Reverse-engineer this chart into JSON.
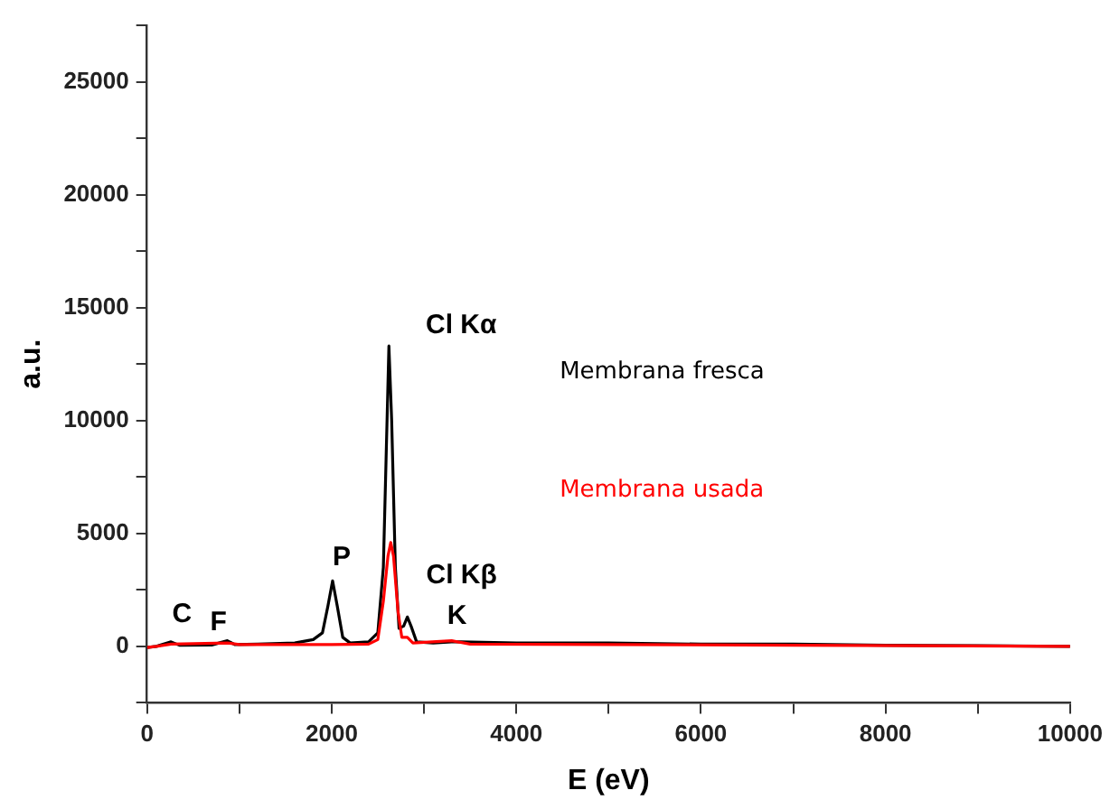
{
  "chart_data": {
    "type": "line",
    "xlabel": "E (eV)",
    "ylabel": "a.u.",
    "xlim": [
      0,
      10000
    ],
    "ylim": [
      -2500,
      27500
    ],
    "xticks": [
      0,
      {
        "value": 1000,
        "label": null
      },
      2000,
      {
        "value": 3000,
        "label": null
      },
      4000,
      {
        "value": 5000,
        "label": null
      },
      6000,
      {
        "value": 7000,
        "label": null
      },
      8000,
      {
        "value": 9000,
        "label": null
      },
      10000
    ],
    "yticks": [
      {
        "value": -2500,
        "label": null
      },
      0,
      {
        "value": 2500,
        "label": null
      },
      5000,
      {
        "value": 7500,
        "label": null
      },
      10000,
      {
        "value": 12500,
        "label": null
      },
      15000,
      {
        "value": 17500,
        "label": null
      },
      20000,
      {
        "value": 22500,
        "label": null
      },
      25000,
      {
        "value": 27500,
        "label": null
      }
    ],
    "grid": false,
    "legend": "right",
    "marker": "none",
    "line_style": "solid",
    "series": [
      {
        "name": "Membrana fresca",
        "color": "#000000",
        "x": [
          0,
          100,
          260,
          350,
          700,
          870,
          950,
          1200,
          1600,
          1800,
          1900,
          1960,
          2010,
          2060,
          2120,
          2200,
          2400,
          2500,
          2560,
          2600,
          2620,
          2650,
          2690,
          2730,
          2780,
          2820,
          2860,
          2920,
          3100,
          3300,
          3400,
          4000,
          5000,
          6000,
          7000,
          8000,
          9000,
          10000
        ],
        "values": [
          -50,
          0,
          200,
          50,
          60,
          250,
          80,
          100,
          150,
          300,
          600,
          1800,
          2900,
          1800,
          400,
          150,
          200,
          600,
          3500,
          10000,
          13300,
          10000,
          3500,
          800,
          900,
          1300,
          900,
          200,
          150,
          200,
          200,
          150,
          150,
          100,
          100,
          50,
          30,
          0
        ]
      },
      {
        "name": "Membrana usada",
        "color": "#ff0000",
        "x": [
          0,
          100,
          260,
          870,
          1000,
          2000,
          2400,
          2500,
          2560,
          2610,
          2640,
          2670,
          2720,
          2760,
          2820,
          2880,
          3300,
          3500,
          5000,
          7000,
          10000
        ],
        "values": [
          -50,
          0,
          100,
          150,
          80,
          80,
          100,
          300,
          2000,
          4000,
          4600,
          4000,
          1500,
          400,
          400,
          150,
          250,
          100,
          80,
          50,
          0
        ]
      }
    ],
    "annotations": [
      {
        "text": "C",
        "x": 260,
        "y": 200
      },
      {
        "text": "F",
        "x": 870,
        "y": 250
      },
      {
        "text": "P",
        "x": 2010,
        "y": 2900
      },
      {
        "text": "Cl Kα",
        "x": 2620,
        "y": 13300
      },
      {
        "text": "Cl Kβ",
        "x": 2820,
        "y": 1300
      },
      {
        "text": "K",
        "x": 3300,
        "y": 200
      }
    ]
  }
}
